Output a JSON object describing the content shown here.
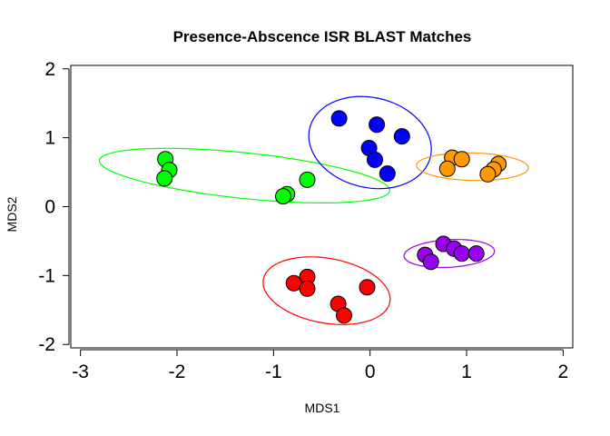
{
  "chart_data": {
    "type": "scatter",
    "title": "Presence-Abscence  ISR BLAST Matches",
    "xlabel": "MDS1",
    "ylabel": "MDS2",
    "xlim": [
      -3.1,
      2.1
    ],
    "ylim": [
      -2.05,
      2.05
    ],
    "x_ticks": [
      -3,
      -2,
      -1,
      0,
      1,
      2
    ],
    "y_ticks": [
      -2,
      -1,
      0,
      1,
      2
    ],
    "x_tick_labels": [
      "-3",
      "-2",
      "-1",
      "0",
      "1",
      "2"
    ],
    "y_tick_labels": [
      "-2",
      "-1",
      "0",
      "1",
      "2"
    ],
    "grid": false,
    "legend": "none",
    "series": [
      {
        "color": "#00ff00",
        "points": [
          [
            -2.12,
            0.69
          ],
          [
            -2.08,
            0.53
          ],
          [
            -2.13,
            0.41
          ],
          [
            -0.65,
            0.39
          ],
          [
            -0.86,
            0.18
          ],
          [
            -0.9,
            0.15
          ]
        ],
        "ellipse": {
          "cx": -1.3,
          "cy": 0.45,
          "rx": 1.52,
          "ry": 0.33,
          "angle_deg": -8.5
        }
      },
      {
        "color": "#0000ff",
        "points": [
          [
            -0.32,
            1.28
          ],
          [
            0.07,
            1.19
          ],
          [
            0.33,
            1.02
          ],
          [
            -0.01,
            0.85
          ],
          [
            0.05,
            0.68
          ],
          [
            0.18,
            0.48
          ]
        ],
        "ellipse": {
          "cx": 0.0,
          "cy": 0.93,
          "rx": 0.6,
          "ry": 0.7,
          "angle_deg": 35
        }
      },
      {
        "color": "#ff9900",
        "points": [
          [
            0.85,
            0.71
          ],
          [
            0.95,
            0.69
          ],
          [
            0.8,
            0.55
          ],
          [
            1.33,
            0.62
          ],
          [
            1.28,
            0.54
          ],
          [
            1.22,
            0.47
          ]
        ],
        "ellipse": {
          "cx": 1.06,
          "cy": 0.58,
          "rx": 0.58,
          "ry": 0.2,
          "angle_deg": -2
        }
      },
      {
        "color": "#9900ee",
        "points": [
          [
            0.76,
            -0.54
          ],
          [
            0.87,
            -0.61
          ],
          [
            0.95,
            -0.68
          ],
          [
            1.1,
            -0.68
          ],
          [
            0.57,
            -0.7
          ],
          [
            0.63,
            -0.8
          ]
        ],
        "ellipse": {
          "cx": 0.82,
          "cy": -0.68,
          "rx": 0.47,
          "ry": 0.2,
          "angle_deg": 5
        }
      },
      {
        "color": "#ff0000",
        "points": [
          [
            -0.65,
            -1.02
          ],
          [
            -0.79,
            -1.11
          ],
          [
            -0.65,
            -1.19
          ],
          [
            -0.03,
            -1.17
          ],
          [
            -0.33,
            -1.41
          ],
          [
            -0.27,
            -1.58
          ]
        ],
        "ellipse": {
          "cx": -0.45,
          "cy": -1.22,
          "rx": 0.68,
          "ry": 0.46,
          "angle_deg": -20
        }
      }
    ]
  }
}
